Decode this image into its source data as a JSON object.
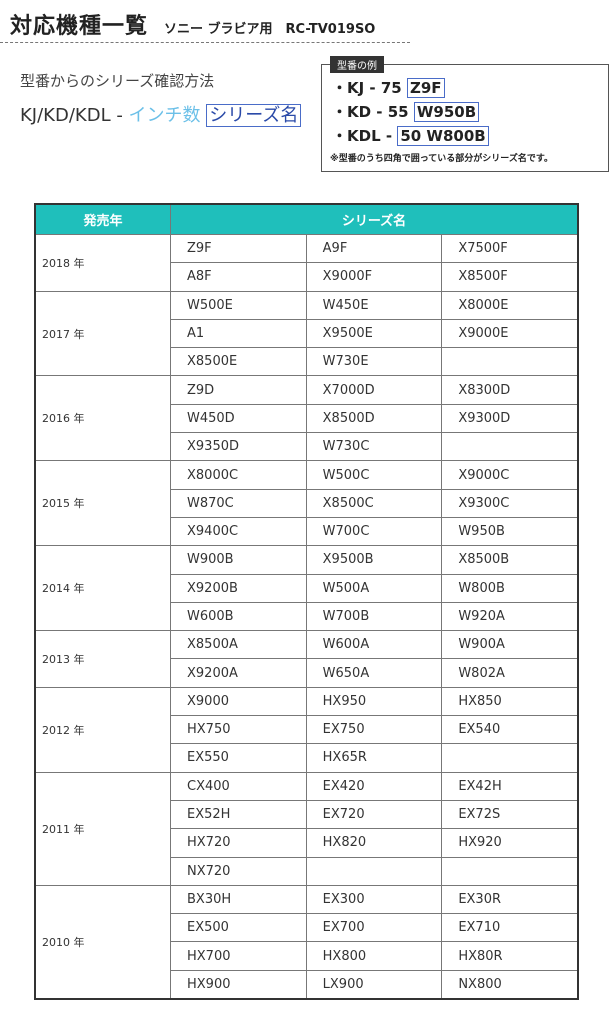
{
  "header": {
    "title": "対応機種一覧",
    "subtitle": "ソニー ブラビア用　RC-TV019SO"
  },
  "method": {
    "heading": "型番からのシリーズ確認方法",
    "prefix": "KJ/KD/KDL - ",
    "inch": "インチ数",
    "series": "シリーズ名"
  },
  "example": {
    "tag": "型番の例",
    "lines": [
      {
        "prefix": "・KJ - 75 ",
        "boxed": "Z9F"
      },
      {
        "prefix": "・KD - 55 ",
        "boxed": "W950B"
      },
      {
        "prefix": "・KDL - ",
        "boxed": "50 W800B"
      }
    ],
    "note": "※型番のうち四角で囲っている部分がシリーズ名です。"
  },
  "colors": {
    "header_bg": "#1fbfbb",
    "highlight_box": "#4a6cc8",
    "inch_text": "#6cc0e8"
  },
  "table": {
    "headers": [
      "発売年",
      "シリーズ名"
    ],
    "groups": [
      {
        "year": "2018 年",
        "rows": [
          [
            "Z9F",
            "A9F",
            "X7500F"
          ],
          [
            "A8F",
            "X9000F",
            "X8500F"
          ]
        ]
      },
      {
        "year": "2017 年",
        "rows": [
          [
            "W500E",
            "W450E",
            "X8000E"
          ],
          [
            "A1",
            "X9500E",
            "X9000E"
          ],
          [
            "X8500E",
            "W730E",
            ""
          ]
        ]
      },
      {
        "year": "2016 年",
        "rows": [
          [
            "Z9D",
            "X7000D",
            "X8300D"
          ],
          [
            "W450D",
            "X8500D",
            "X9300D"
          ],
          [
            "X9350D",
            "W730C",
            ""
          ]
        ]
      },
      {
        "year": "2015 年",
        "rows": [
          [
            "X8000C",
            "W500C",
            "X9000C"
          ],
          [
            "W870C",
            "X8500C",
            "X9300C"
          ],
          [
            "X9400C",
            "W700C",
            "W950B"
          ]
        ]
      },
      {
        "year": "2014 年",
        "rows": [
          [
            "W900B",
            "X9500B",
            "X8500B"
          ],
          [
            "X9200B",
            "W500A",
            "W800B"
          ],
          [
            "W600B",
            "W700B",
            "W920A"
          ]
        ]
      },
      {
        "year": "2013 年",
        "rows": [
          [
            "X8500A",
            "W600A",
            "W900A"
          ],
          [
            "X9200A",
            "W650A",
            "W802A"
          ]
        ]
      },
      {
        "year": "2012 年",
        "rows": [
          [
            "X9000",
            "HX950",
            "HX850"
          ],
          [
            "HX750",
            "EX750",
            "EX540"
          ],
          [
            "EX550",
            "HX65R",
            ""
          ]
        ]
      },
      {
        "year": "2011 年",
        "rows": [
          [
            "CX400",
            "EX420",
            "EX42H"
          ],
          [
            "EX52H",
            "EX720",
            "EX72S"
          ],
          [
            "HX720",
            "HX820",
            "HX920"
          ],
          [
            "NX720",
            "",
            ""
          ]
        ]
      },
      {
        "year": "2010 年",
        "rows": [
          [
            "BX30H",
            "EX300",
            "EX30R"
          ],
          [
            "EX500",
            "EX700",
            "EX710"
          ],
          [
            "HX700",
            "HX800",
            "HX80R"
          ],
          [
            "HX900",
            "LX900",
            "NX800"
          ]
        ]
      }
    ]
  }
}
